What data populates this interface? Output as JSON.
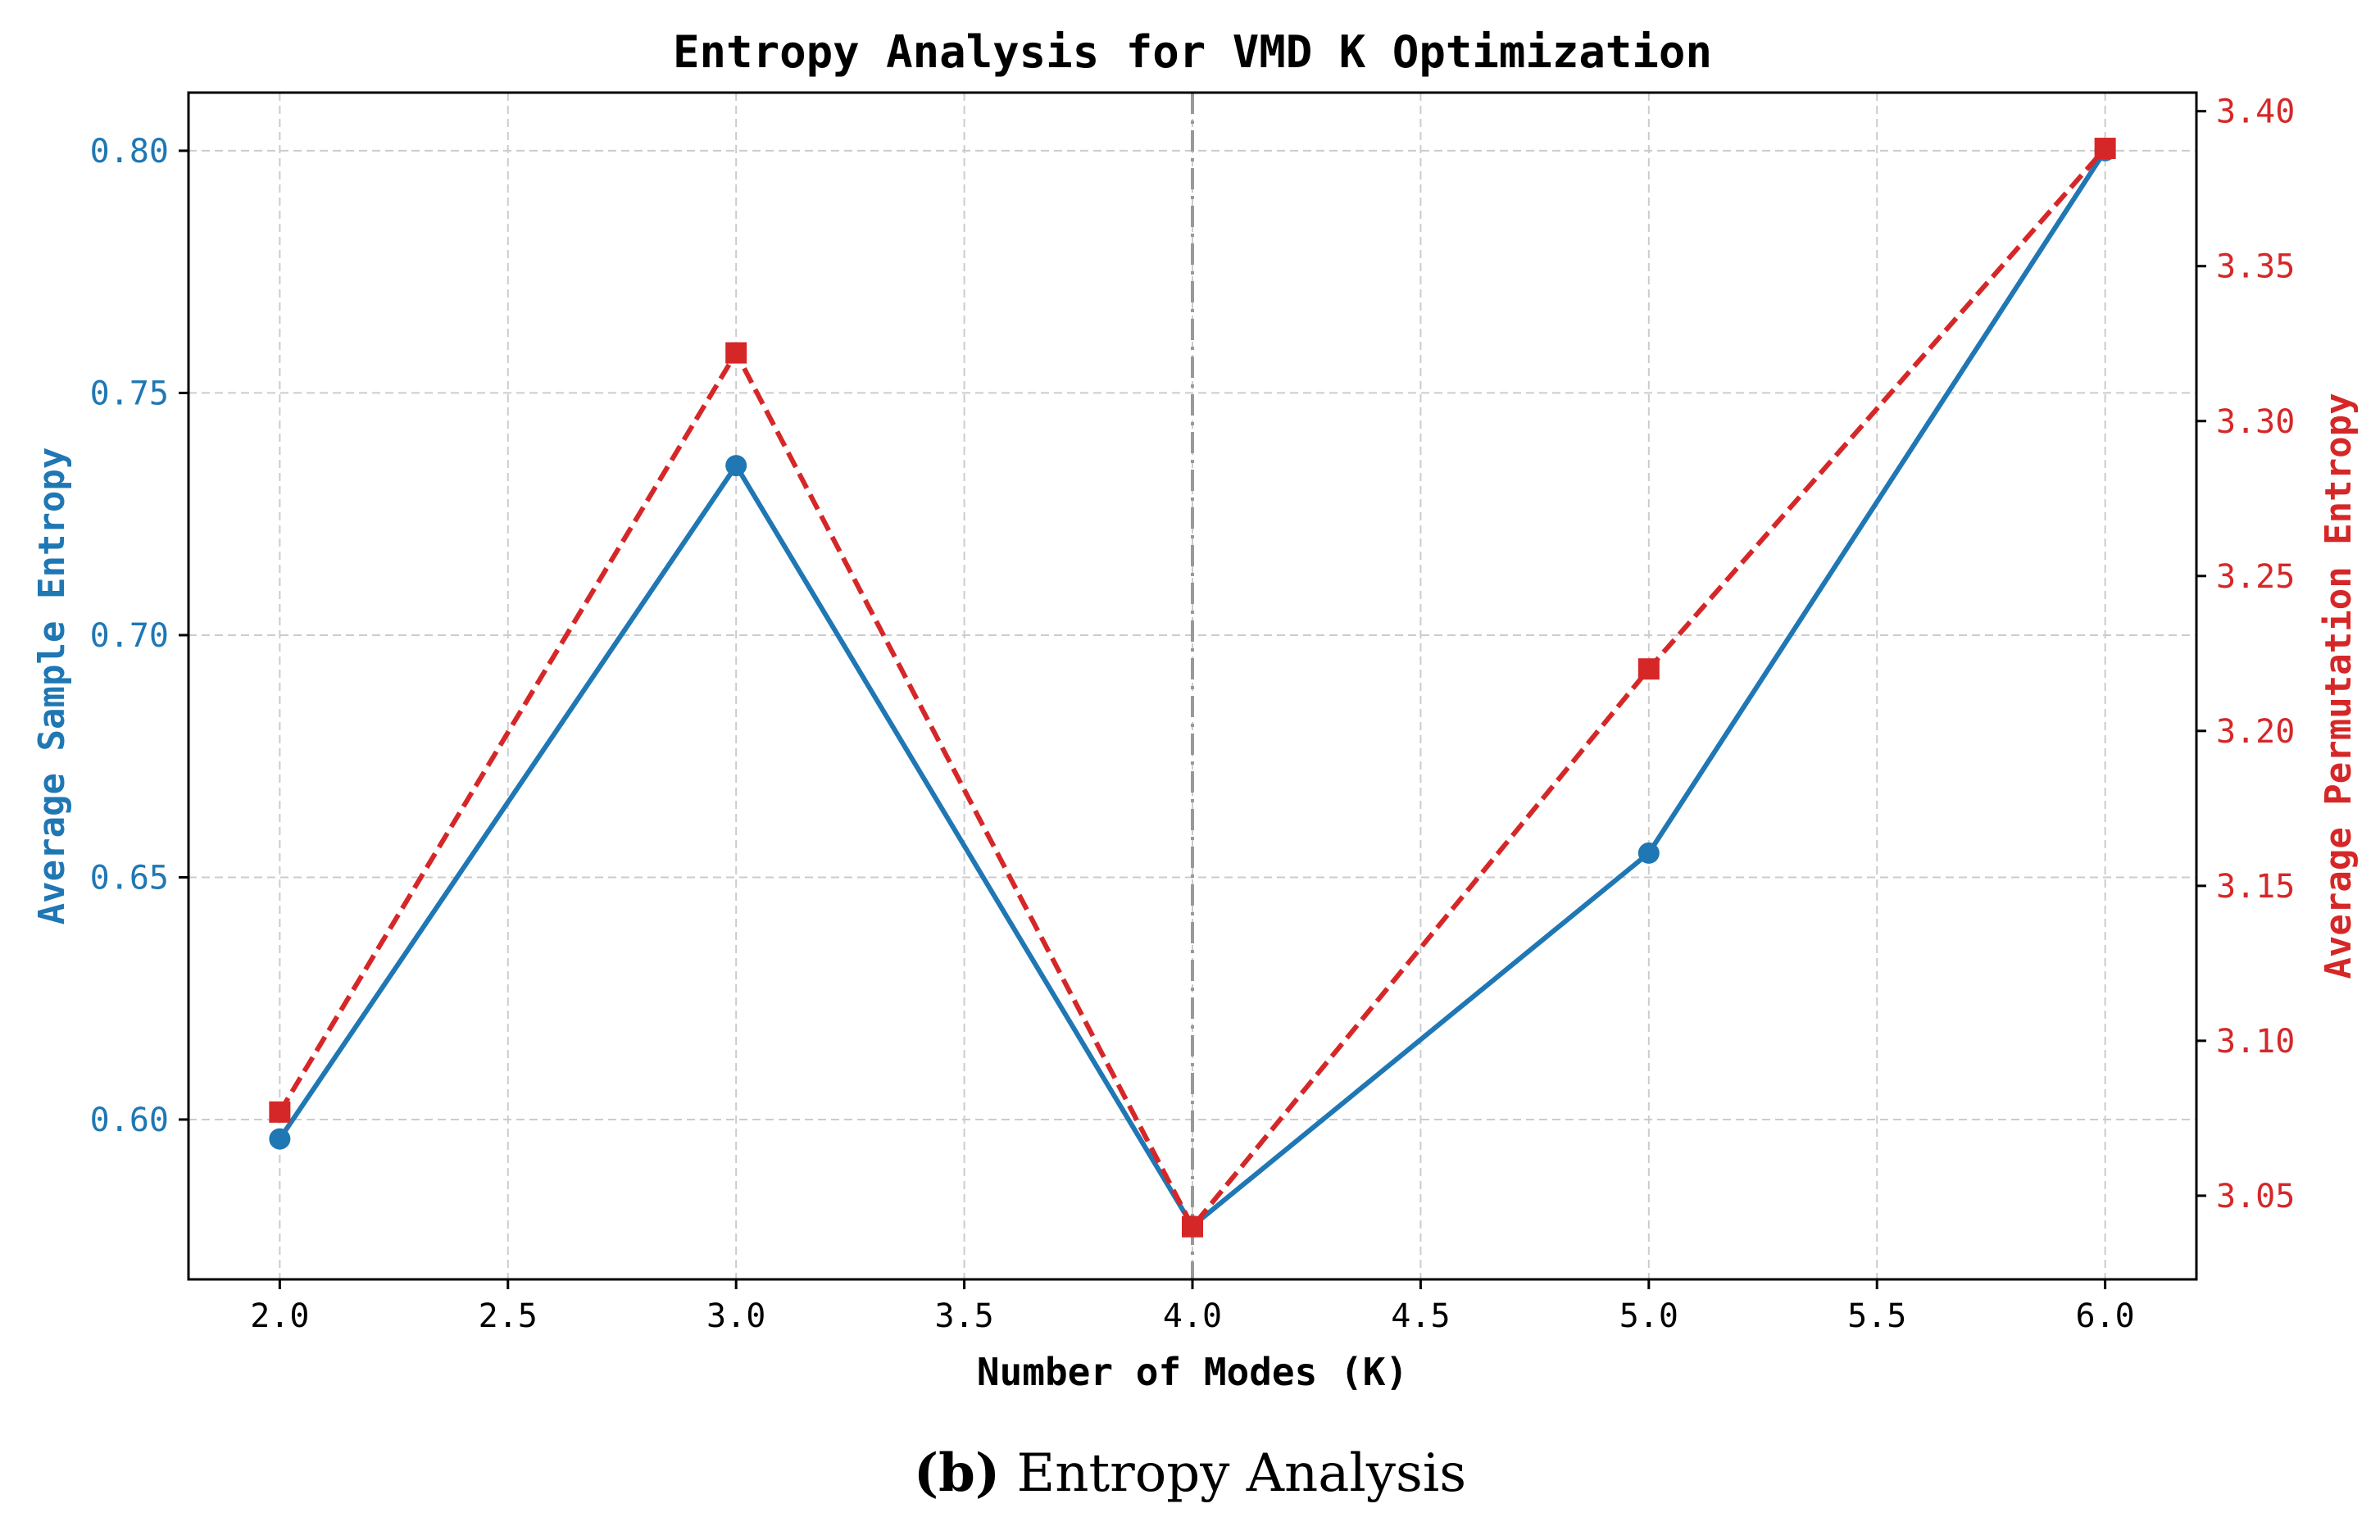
{
  "chart_data": {
    "type": "line",
    "title": "Entropy Analysis for VMD K Optimization",
    "xlabel": "Number of Modes (K)",
    "x": [
      2.0,
      3.0,
      4.0,
      5.0,
      6.0
    ],
    "xlim": [
      1.8,
      6.2
    ],
    "x_ticks": [
      "2.0",
      "2.5",
      "3.0",
      "3.5",
      "4.0",
      "4.5",
      "5.0",
      "5.5",
      "6.0"
    ],
    "grid": true,
    "optimal_k_marker": 4.0,
    "series": [
      {
        "name": "Average Sample Entropy",
        "axis": "left",
        "ylabel": "Average Sample Entropy",
        "values": [
          0.596,
          0.735,
          0.578,
          0.655,
          0.8
        ],
        "ylim": [
          0.567,
          0.812
        ],
        "y_ticks": [
          "0.60",
          "0.65",
          "0.70",
          "0.75",
          "0.80"
        ],
        "color": "#1f77b4",
        "marker": "circle",
        "linestyle": "solid"
      },
      {
        "name": "Average Permutation Entropy",
        "axis": "right",
        "ylabel": "Average Permutation Entropy",
        "values": [
          3.077,
          3.322,
          3.04,
          3.22,
          3.388
        ],
        "ylim": [
          3.023,
          3.406
        ],
        "y_ticks": [
          "3.05",
          "3.10",
          "3.15",
          "3.20",
          "3.25",
          "3.30",
          "3.35",
          "3.40"
        ],
        "color": "#d62728",
        "marker": "square",
        "linestyle": "dashed"
      }
    ]
  },
  "caption": {
    "label": "(b)",
    "text": "Entropy Analysis"
  }
}
